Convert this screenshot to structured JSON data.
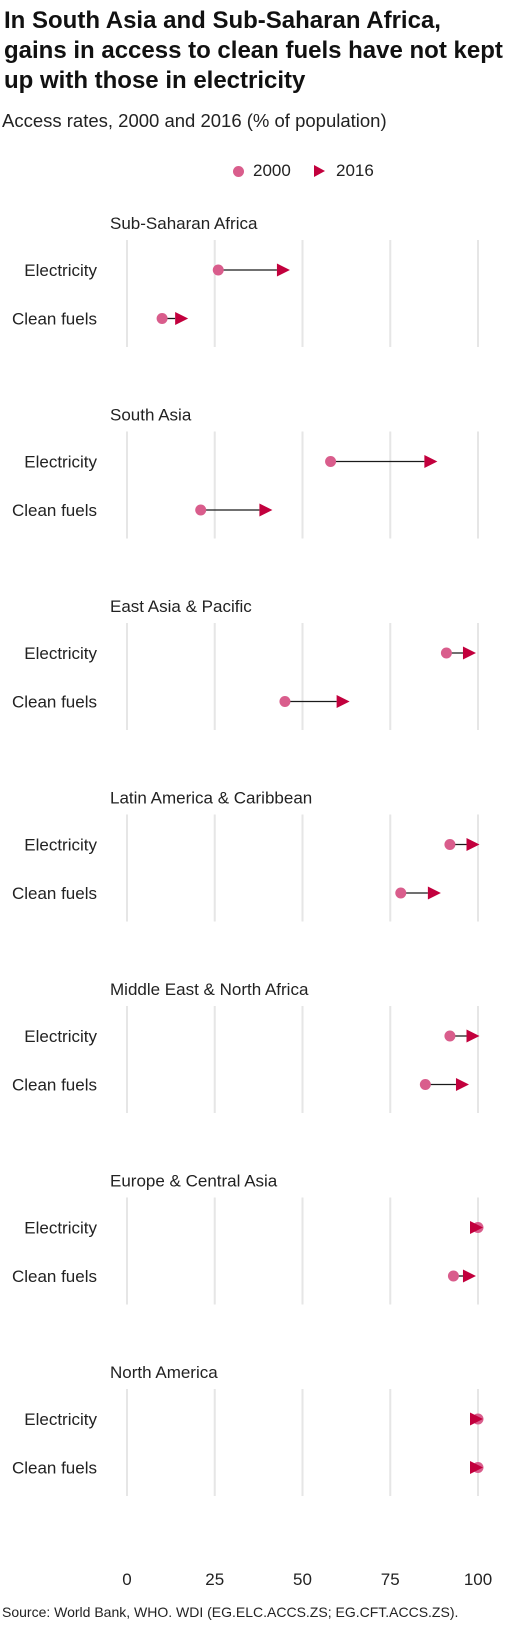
{
  "title": "In South Asia and Sub-Saharan Africa, gains in access to clean fuels have not kept up with those in electricity",
  "subtitle": "Access rates, 2000 and 2016 (% of population)",
  "source": "Source: World Bank, WHO. WDI (EG.ELC.ACCS.ZS; EG.CFT.ACCS.ZS).",
  "colors": {
    "y2000": "#d95d8c",
    "y2016": "#c2003d",
    "connector": "#1a1a1a",
    "grid": "#e6e6e6"
  },
  "legend": [
    {
      "label": "2000",
      "marker": "circle"
    },
    {
      "label": "2016",
      "marker": "triangle-right"
    }
  ],
  "chart_data": {
    "type": "dumbbell",
    "x_ticks": [
      0,
      25,
      50,
      75,
      100
    ],
    "xlim": [
      0,
      100
    ],
    "grid": "vertical",
    "panels": [
      {
        "region": "Sub-Saharan Africa",
        "rows": [
          {
            "label": "Electricity",
            "y2000": 26,
            "y2016": 45
          },
          {
            "label": "Clean fuels",
            "y2000": 10,
            "y2016": 16
          }
        ]
      },
      {
        "region": "South Asia",
        "rows": [
          {
            "label": "Electricity",
            "y2000": 58,
            "y2016": 87
          },
          {
            "label": "Clean fuels",
            "y2000": 21,
            "y2016": 40
          }
        ]
      },
      {
        "region": "East Asia & Pacific",
        "rows": [
          {
            "label": "Electricity",
            "y2000": 91,
            "y2016": 98
          },
          {
            "label": "Clean fuels",
            "y2000": 45,
            "y2016": 62
          }
        ]
      },
      {
        "region": "Latin America & Caribbean",
        "rows": [
          {
            "label": "Electricity",
            "y2000": 92,
            "y2016": 99
          },
          {
            "label": "Clean fuels",
            "y2000": 78,
            "y2016": 88
          }
        ]
      },
      {
        "region": "Middle East & North Africa",
        "rows": [
          {
            "label": "Electricity",
            "y2000": 92,
            "y2016": 99
          },
          {
            "label": "Clean fuels",
            "y2000": 85,
            "y2016": 96
          }
        ]
      },
      {
        "region": "Europe & Central Asia",
        "rows": [
          {
            "label": "Electricity",
            "y2000": 100,
            "y2016": 100
          },
          {
            "label": "Clean fuels",
            "y2000": 93,
            "y2016": 98
          }
        ]
      },
      {
        "region": "North America",
        "rows": [
          {
            "label": "Electricity",
            "y2000": 100,
            "y2016": 100
          },
          {
            "label": "Clean fuels",
            "y2000": 100,
            "y2016": 100
          }
        ]
      }
    ]
  }
}
